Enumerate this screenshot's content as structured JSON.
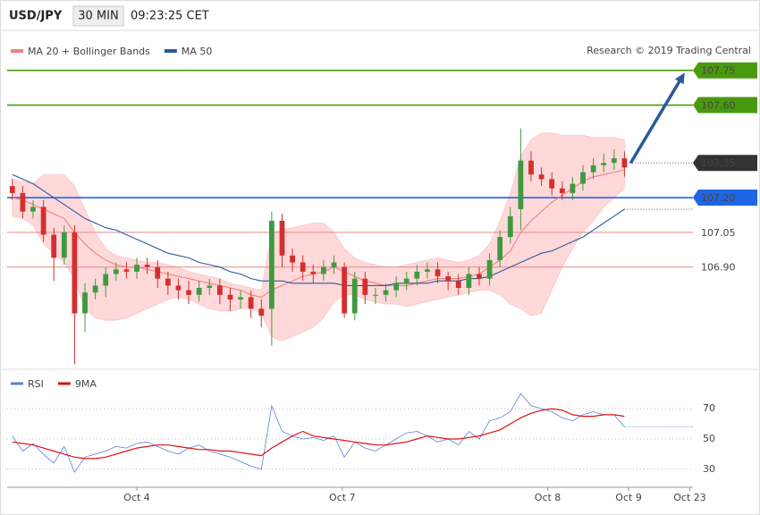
{
  "header": {
    "symbol": "USD/JPY",
    "interval": "30 MIN",
    "time": "09:23:25 CET",
    "credit": "Research © 2019 Trading Central"
  },
  "chart_data": [
    {
      "type": "candlestick",
      "xlim": [
        -0.5,
        65.6
      ],
      "ylim": [
        106.47,
        107.83
      ],
      "up_color": "#3f9a3f",
      "down_color": "#d32f2f",
      "candles": {
        "open": [
          107.25,
          107.22,
          107.14,
          107.16,
          107.04,
          106.94,
          107.05,
          106.7,
          106.79,
          106.82,
          106.87,
          106.89,
          106.88,
          106.91,
          106.9,
          106.85,
          106.82,
          106.8,
          106.78,
          106.81,
          106.82,
          106.78,
          106.76,
          106.77,
          106.72,
          106.72,
          107.1,
          106.95,
          106.92,
          106.88,
          106.87,
          106.9,
          106.9,
          106.7,
          106.85,
          106.78,
          106.78,
          106.8,
          106.83,
          106.85,
          106.88,
          106.89,
          106.86,
          106.84,
          106.81,
          106.87,
          106.85,
          106.93,
          107.03,
          107.15,
          107.36,
          107.3,
          107.28,
          107.24,
          107.22,
          107.26,
          107.31,
          107.34,
          107.35,
          107.37
        ],
        "high": [
          107.28,
          107.25,
          107.19,
          107.19,
          107.07,
          107.08,
          107.08,
          106.83,
          106.85,
          106.9,
          106.92,
          106.92,
          106.94,
          106.94,
          106.93,
          106.88,
          106.85,
          106.84,
          106.84,
          106.85,
          106.85,
          106.81,
          106.8,
          106.8,
          106.76,
          107.14,
          107.13,
          106.98,
          106.95,
          106.91,
          106.93,
          106.95,
          106.92,
          106.88,
          106.88,
          106.81,
          106.83,
          106.86,
          106.88,
          106.91,
          106.92,
          106.92,
          106.88,
          106.87,
          106.9,
          106.9,
          106.96,
          107.06,
          107.16,
          107.5,
          107.4,
          107.33,
          107.31,
          107.27,
          107.29,
          107.34,
          107.37,
          107.39,
          107.41,
          107.4
        ],
        "low": [
          107.19,
          107.11,
          107.11,
          107.01,
          106.84,
          106.91,
          106.48,
          106.62,
          106.76,
          106.77,
          106.84,
          106.85,
          106.85,
          106.87,
          106.81,
          106.78,
          106.76,
          106.74,
          106.75,
          106.78,
          106.74,
          106.71,
          106.72,
          106.68,
          106.64,
          106.56,
          106.9,
          106.88,
          106.84,
          106.83,
          106.84,
          106.87,
          106.68,
          106.67,
          106.74,
          106.74,
          106.75,
          106.77,
          106.8,
          106.82,
          106.85,
          106.83,
          106.8,
          106.78,
          106.78,
          106.82,
          106.82,
          106.9,
          107.0,
          107.06,
          107.27,
          107.25,
          107.21,
          107.19,
          107.19,
          107.23,
          107.28,
          107.31,
          107.32,
          107.29
        ],
        "close": [
          107.22,
          107.14,
          107.16,
          107.04,
          106.94,
          107.05,
          106.7,
          106.79,
          106.82,
          106.87,
          106.89,
          106.88,
          106.91,
          106.9,
          106.85,
          106.82,
          106.8,
          106.78,
          106.81,
          106.82,
          106.78,
          106.76,
          106.77,
          106.72,
          106.69,
          107.1,
          106.95,
          106.92,
          106.88,
          106.87,
          106.9,
          106.92,
          106.7,
          106.85,
          106.78,
          106.78,
          106.8,
          106.83,
          106.85,
          106.88,
          106.89,
          106.86,
          106.84,
          106.81,
          106.87,
          106.85,
          106.93,
          107.03,
          107.12,
          107.36,
          107.3,
          107.28,
          107.24,
          107.22,
          107.26,
          107.31,
          107.34,
          107.35,
          107.37,
          107.33
        ]
      },
      "series": [
        {
          "name": "MA 20 + Bollinger Bands",
          "color": "#f08080",
          "band_color": "#ffd9d9",
          "values": [
            107.2,
            107.19,
            107.17,
            107.15,
            107.13,
            107.11,
            107.05,
            107.0,
            106.96,
            106.93,
            106.91,
            106.9,
            106.9,
            106.89,
            106.88,
            106.87,
            106.86,
            106.85,
            106.84,
            106.83,
            106.82,
            106.81,
            106.8,
            106.78,
            106.77,
            106.8,
            106.82,
            106.84,
            106.86,
            106.87,
            106.88,
            106.9,
            106.88,
            106.86,
            106.84,
            106.83,
            106.82,
            106.82,
            106.82,
            106.83,
            106.84,
            106.85,
            106.85,
            106.85,
            106.86,
            106.87,
            106.9,
            106.93,
            106.97,
            107.05,
            107.1,
            107.14,
            107.18,
            107.21,
            107.24,
            107.27,
            107.29,
            107.3,
            107.31,
            107.32
          ],
          "upper": [
            107.28,
            107.27,
            107.26,
            107.3,
            107.3,
            107.3,
            107.25,
            107.15,
            107.05,
            106.98,
            106.95,
            106.94,
            106.93,
            106.92,
            106.92,
            106.91,
            106.9,
            106.88,
            106.87,
            106.86,
            106.85,
            106.83,
            106.82,
            106.81,
            106.8,
            107.05,
            107.06,
            107.07,
            107.08,
            107.09,
            107.09,
            107.05,
            106.98,
            106.94,
            106.92,
            106.91,
            106.9,
            106.9,
            106.91,
            106.92,
            106.93,
            106.94,
            106.93,
            106.92,
            106.93,
            106.95,
            107.0,
            107.1,
            107.22,
            107.38,
            107.45,
            107.48,
            107.48,
            107.47,
            107.47,
            107.47,
            107.46,
            107.46,
            107.46,
            107.45
          ],
          "lower": [
            107.12,
            107.11,
            107.08,
            107.0,
            106.96,
            106.92,
            106.85,
            106.72,
            106.68,
            106.67,
            106.67,
            106.68,
            106.7,
            106.72,
            106.74,
            106.76,
            106.77,
            106.76,
            106.74,
            106.72,
            106.71,
            106.71,
            106.72,
            106.72,
            106.7,
            106.6,
            106.58,
            106.6,
            106.62,
            106.64,
            106.68,
            106.75,
            106.78,
            106.78,
            106.76,
            106.75,
            106.74,
            106.74,
            106.73,
            106.74,
            106.75,
            106.76,
            106.77,
            106.78,
            106.79,
            106.8,
            106.8,
            106.78,
            106.74,
            106.72,
            106.69,
            106.7,
            106.8,
            106.9,
            106.98,
            107.05,
            107.1,
            107.16,
            107.2,
            107.24
          ]
        },
        {
          "name": "MA 50",
          "color": "#2a5a9a",
          "values": [
            107.3,
            107.28,
            107.26,
            107.23,
            107.2,
            107.17,
            107.14,
            107.11,
            107.09,
            107.07,
            107.06,
            107.04,
            107.02,
            107.0,
            106.98,
            106.96,
            106.95,
            106.94,
            106.92,
            106.91,
            106.9,
            106.88,
            106.87,
            106.85,
            106.84,
            106.84,
            106.84,
            106.83,
            106.83,
            106.83,
            106.83,
            106.83,
            106.82,
            106.82,
            106.82,
            106.82,
            106.82,
            106.83,
            106.83,
            106.83,
            106.83,
            106.84,
            106.84,
            106.84,
            106.85,
            106.85,
            106.86,
            106.88,
            106.9,
            106.92,
            106.94,
            106.96,
            106.97,
            106.99,
            107.01,
            107.03,
            107.06,
            107.09,
            107.12,
            107.15
          ]
        }
      ],
      "levels": [
        {
          "value": 107.75,
          "label": "107.75",
          "color": "#4a9a10",
          "line": "solid",
          "tag": true
        },
        {
          "value": 107.6,
          "label": "107.60",
          "color": "#4a9a10",
          "line": "solid",
          "tag": true
        },
        {
          "value": 107.35,
          "label": "107.35",
          "color": "#333333",
          "line": "dotted",
          "tag": true
        },
        {
          "value": 107.2,
          "label": "107.20",
          "color": "#1f66e5",
          "line": "solid",
          "tag": true
        },
        {
          "value": 107.05,
          "label": "107.05",
          "color": "#e88888",
          "line": "solid",
          "tag": false
        },
        {
          "value": 106.9,
          "label": "106.90",
          "color": "#e88888",
          "line": "solid",
          "tag": false
        }
      ],
      "arrow": {
        "x": [
          59.6,
          64.8
        ],
        "y": [
          107.35,
          107.74
        ],
        "color": "#2a5a9a"
      }
    },
    {
      "type": "line",
      "xlim": [
        -0.5,
        65.6
      ],
      "ylim": [
        21,
        89
      ],
      "yticks": [
        30,
        50,
        70
      ],
      "grid": true,
      "series": [
        {
          "name": "RSI",
          "color": "#5b7fd6",
          "values": [
            52,
            42,
            47,
            40,
            34,
            45,
            28,
            38,
            40,
            42,
            45,
            44,
            47,
            48,
            45,
            42,
            40,
            44,
            46,
            42,
            40,
            38,
            35,
            32,
            30,
            72,
            55,
            52,
            50,
            51,
            49,
            52,
            38,
            48,
            44,
            42,
            46,
            50,
            54,
            55,
            52,
            48,
            50,
            46,
            55,
            50,
            62,
            64,
            68,
            80,
            72,
            70,
            68,
            64,
            62,
            66,
            68,
            66,
            66,
            58
          ]
        },
        {
          "name": "9MA",
          "color": "#dd1111",
          "values": [
            48,
            47,
            46,
            44,
            42,
            40,
            38,
            37,
            37,
            38,
            40,
            42,
            44,
            45,
            46,
            46,
            45,
            44,
            43,
            43,
            42,
            42,
            41,
            40,
            39,
            44,
            48,
            52,
            55,
            52,
            51,
            50,
            49,
            48,
            47,
            46,
            46,
            47,
            48,
            50,
            52,
            51,
            50,
            50,
            51,
            52,
            54,
            56,
            60,
            64,
            67,
            69,
            70,
            69,
            66,
            65,
            65,
            66,
            66,
            65
          ]
        }
      ],
      "xticks": [
        {
          "value": 12,
          "label": "Oct 4"
        },
        {
          "value": 31.8,
          "label": "Oct 7"
        },
        {
          "value": 51.6,
          "label": "Oct 8"
        },
        {
          "value": 59.4,
          "label": "Oct 9"
        },
        {
          "value": 65.3,
          "label": "Oct 23"
        }
      ]
    }
  ]
}
